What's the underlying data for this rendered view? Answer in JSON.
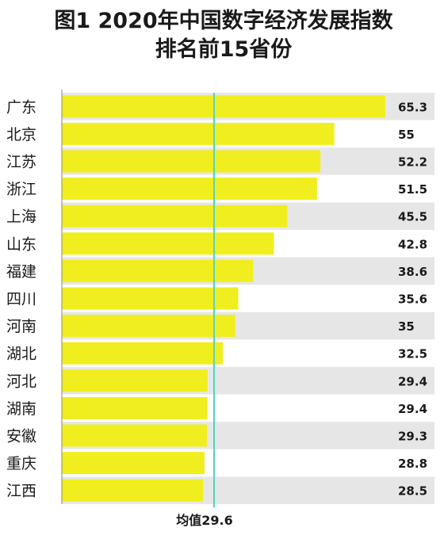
{
  "chart_data": {
    "type": "bar",
    "orientation": "horizontal",
    "title_line1": "图1 2020年中国数字经济发展指数",
    "title_line2": "排名前15省份",
    "categories": [
      "广东",
      "北京",
      "江苏",
      "浙江",
      "上海",
      "山东",
      "福建",
      "四川",
      "河南",
      "湖北",
      "河北",
      "湖南",
      "安徽",
      "重庆",
      "江西"
    ],
    "values": [
      65.3,
      55,
      52.2,
      51.5,
      45.5,
      42.8,
      38.6,
      35.6,
      35,
      32.5,
      29.4,
      29.4,
      29.3,
      28.8,
      28.5
    ],
    "data_labels": [
      "65.3",
      "55",
      "52.2",
      "51.5",
      "45.5",
      "42.8",
      "38.6",
      "35.6",
      "35",
      "32.5",
      "29.4",
      "29.4",
      "29.3",
      "28.8",
      "28.5"
    ],
    "reference_line": {
      "value": 29.6,
      "label": "均值29.6"
    },
    "colors": {
      "bar": "#f0ee1e",
      "row_alt": "#e6e6e6",
      "row": "#ffffff",
      "reference": "#4fd4c6",
      "text": "#1a1a1a"
    }
  }
}
